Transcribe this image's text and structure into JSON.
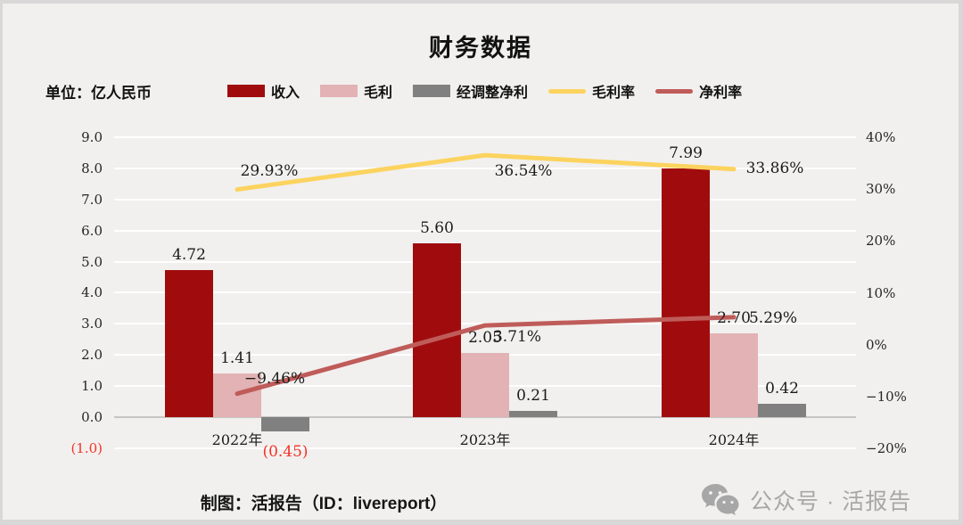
{
  "title": "财务数据",
  "unit_label": "单位：亿人民币",
  "footer": {
    "credit": "制图：活报告（ID：livereport）",
    "wechat_badge": "公众号 · 活报告"
  },
  "colors": {
    "background": "#f1f0ee",
    "frame": "#d8d8d8",
    "gridline": "#ffffff",
    "zero_axis": "#c6c5c3",
    "negative_text": "#f43129",
    "revenue_bar": "#a00c0d",
    "gross_profit_bar": "#e2b2b4",
    "adjusted_net_bar": "#808080",
    "gross_margin_line": "#fcd35f",
    "net_margin_line": "#bf5c5a",
    "wechat_gray": "#a7a7a7"
  },
  "chart_data": {
    "type": "bar+line combo",
    "title": "财务数据",
    "unit": "亿人民币",
    "categories": [
      "2022年",
      "2023年",
      "2024年"
    ],
    "legend_position": "top",
    "grid": true,
    "series": [
      {
        "name": "收入",
        "type": "bar",
        "axis": "left",
        "color": "#a00c0d",
        "values": [
          4.72,
          5.6,
          7.99
        ],
        "labels": [
          "4.72",
          "5.60",
          "7.99"
        ]
      },
      {
        "name": "毛利",
        "type": "bar",
        "axis": "left",
        "color": "#e2b2b4",
        "values": [
          1.41,
          2.05,
          2.7
        ],
        "labels": [
          "1.41",
          "2.05",
          "2.70"
        ]
      },
      {
        "name": "经调整净利",
        "type": "bar",
        "axis": "left",
        "color": "#808080",
        "values": [
          -0.45,
          0.21,
          0.42
        ],
        "labels": [
          "(0.45)",
          "0.21",
          "0.42"
        ]
      },
      {
        "name": "毛利率",
        "type": "line",
        "axis": "right",
        "color": "#fcd35f",
        "values": [
          29.93,
          36.54,
          33.86
        ],
        "labels": [
          "29.93%",
          "36.54%",
          "33.86%"
        ]
      },
      {
        "name": "净利率",
        "type": "line",
        "axis": "right",
        "color": "#bf5c5a",
        "values": [
          -9.46,
          3.71,
          5.29
        ],
        "labels": [
          "−9.46%",
          "3.71%",
          "5.29%"
        ]
      }
    ],
    "left_axis": {
      "label": "单位：亿人民币",
      "range": [
        -1.0,
        9.0
      ],
      "tick_values": [
        9,
        8,
        7,
        6,
        5,
        4,
        3,
        2,
        1,
        0,
        -1
      ],
      "tick_labels": [
        "9.0",
        "8.0",
        "7.0",
        "6.0",
        "5.0",
        "4.0",
        "3.0",
        "2.0",
        "1.0",
        "0.0",
        "(1.0)"
      ]
    },
    "right_axis": {
      "range": [
        -20,
        40
      ],
      "tick_values": [
        40,
        30,
        20,
        10,
        0,
        -10,
        -20
      ],
      "tick_labels": [
        "40%",
        "30%",
        "20%",
        "10%",
        "0%",
        "−10%",
        "−20%"
      ]
    }
  }
}
